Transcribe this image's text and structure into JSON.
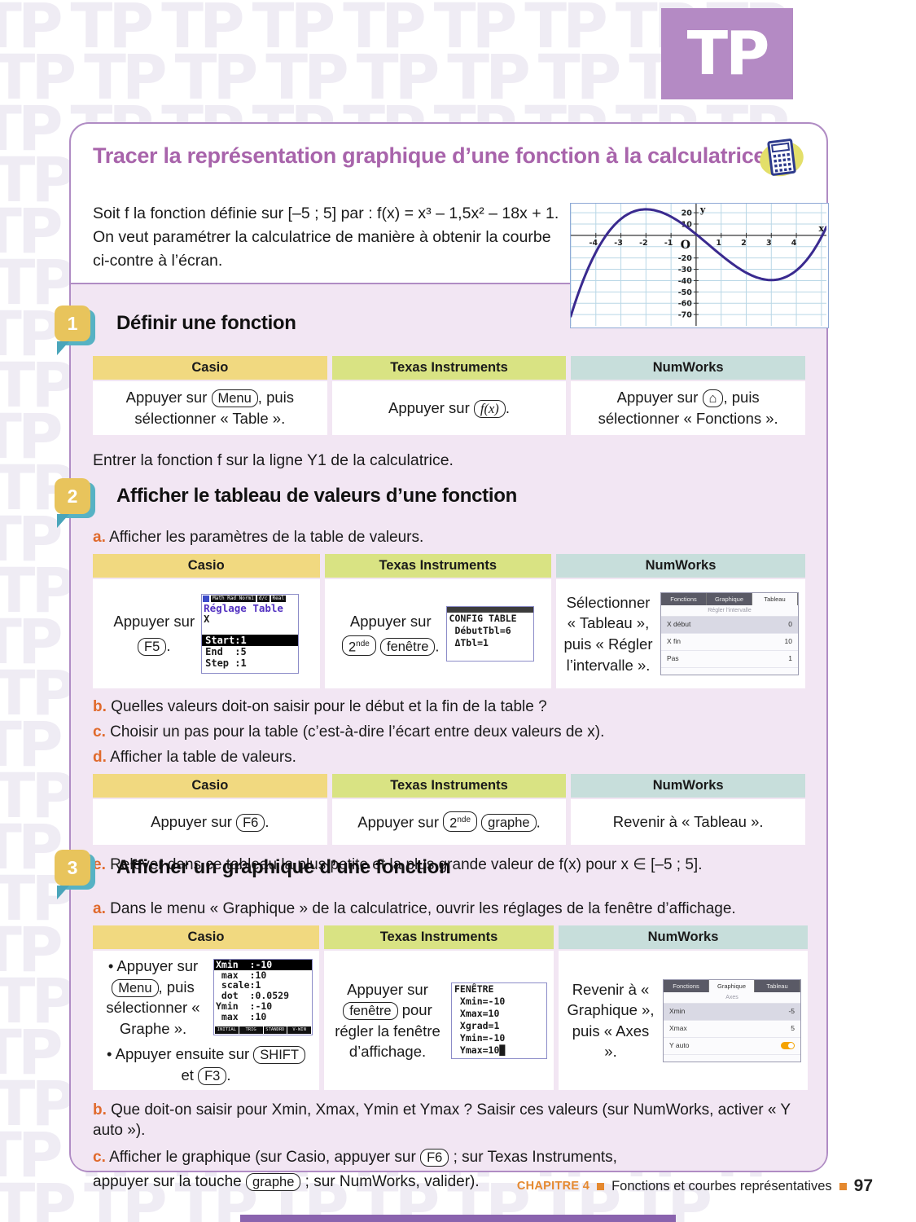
{
  "page": {
    "watermark_text": "TP",
    "logo_text": "TP",
    "footer": {
      "chapter": "CHAPITRE 4",
      "title": "Fonctions et courbes représentatives",
      "page_number": "97"
    }
  },
  "header": {
    "title": "Tracer la représentation graphique d’une fonction à la calculatrice"
  },
  "intro": {
    "line1": "Soit f la fonction définie sur [–5 ; 5] par : f(x) = x³ – 1,5x² – 18x + 1.",
    "line2": "On veut paramétrer la calculatrice de manière à obtenir la courbe",
    "line3": "ci-contre à l’écran."
  },
  "graph": {
    "ylabel": "y",
    "xlabel": "x",
    "origin_label": "O",
    "x_ticks": [
      -4,
      -3,
      -2,
      -1,
      1,
      2,
      3,
      4
    ],
    "y_ticks": [
      20,
      10,
      -20,
      -30,
      -40,
      -50,
      -60,
      -70
    ],
    "x_range": [
      -5.0,
      5.2
    ],
    "y_range": [
      -80,
      28
    ],
    "function": "f(x) = x^3 - 1.5x^2 - 18x + 1",
    "coeffs": [
      1,
      -1.5,
      -18,
      1
    ]
  },
  "columns": [
    "Casio",
    "Texas Instruments",
    "NumWorks"
  ],
  "section1": {
    "number": "1",
    "heading": "Définir une fonction",
    "casio": {
      "pre": "Appuyer sur ",
      "key": "Menu",
      "post": ", puis sélectionner « Table »."
    },
    "ti": {
      "pre": "Appuyer sur ",
      "key": "f(x)",
      "post": "."
    },
    "numworks": {
      "pre": "Appuyer sur ",
      "key": "⌂",
      "post": ", puis sélectionner « Fonctions »."
    },
    "note": "Entrer la fonction f sur la ligne Y1 de la calculatrice."
  },
  "section2": {
    "number": "2",
    "heading": "Afficher le tableau de valeurs d’une fonction",
    "item_a": {
      "letter": "a.",
      "text": "Afficher les paramètres de la table de valeurs."
    },
    "table_a": {
      "casio": {
        "pre": "Appuyer sur",
        "key": "F5",
        "post": "."
      },
      "ti": {
        "pre": "Appuyer sur",
        "key1_base": "2",
        "key1_sup": "nde",
        "key2": "fenêtre",
        "post": "."
      },
      "numworks": {
        "text": "Sélectionner « Tableau », puis « Régler l’intervalle »."
      }
    },
    "casio_screen": {
      "statusbar": [
        "Math Rad Norm1",
        "d/c",
        "Real"
      ],
      "title": "Réglage Table",
      "variable": "X",
      "rows": [
        "Start:1",
        "End  :5",
        "Step :1"
      ]
    },
    "ti_screen": {
      "lines": [
        "CONFIG TABLE",
        " DébutTbl=6",
        " ΔTbl=1"
      ]
    },
    "numworks_screen": {
      "tabs": [
        "Fonctions",
        "Graphique",
        "Tableau"
      ],
      "active_tab": "Tableau",
      "subtitle": "Régler l'intervalle",
      "rows": [
        {
          "label": "X début",
          "value": "0"
        },
        {
          "label": "X fin",
          "value": "10"
        },
        {
          "label": "Pas",
          "value": "1"
        }
      ]
    },
    "item_b": {
      "letter": "b.",
      "text": "Quelles valeurs doit-on saisir pour le début et la fin de la table ?"
    },
    "item_c": {
      "letter": "c.",
      "text": "Choisir un pas pour la table (c’est-à-dire l’écart entre deux valeurs de x)."
    },
    "item_d": {
      "letter": "d.",
      "text": "Afficher la table de valeurs."
    },
    "table_d": {
      "casio": {
        "pre": "Appuyer sur ",
        "key": "F6",
        "post": "."
      },
      "ti": {
        "pre": "Appuyer sur ",
        "key1_base": "2",
        "key1_sup": "nde",
        "key2": "graphe",
        "post": "."
      },
      "numworks": {
        "text": "Revenir à « Tableau »."
      }
    },
    "item_e": {
      "letter": "e.",
      "text": "Relever dans ce tableau la plus petite et la plus grande valeur de f(x) pour x ∈ [–5 ; 5]."
    }
  },
  "section3": {
    "number": "3",
    "heading": "Afficher un graphique d’une fonction",
    "item_a": {
      "letter": "a.",
      "text": "Dans le menu « Graphique » de la calculatrice, ouvrir les réglages de la fenêtre d’affichage."
    },
    "casio": {
      "b1_pre": "• Appuyer sur ",
      "b1_key": "Menu",
      "b1_post": ", puis sélectionner « Graphe ».",
      "b2_pre": "• Appuyer ensuite sur ",
      "b2_key": "SHIFT",
      "b2_mid": " et ",
      "b2_key2": "F3",
      "b2_post": "."
    },
    "casio_screen": {
      "rows": [
        "Xmin  :-10",
        " max  :10",
        " scale:1",
        " dot  :0.0529",
        "Ymin  :-10",
        " max  :10"
      ],
      "menu_tabs": [
        "INITIAL",
        "TRIG",
        "STANDRD",
        "V-WIN"
      ]
    },
    "ti": {
      "pre": "Appuyer sur ",
      "key": "fenêtre",
      "post": " pour régler la fenêtre d’affichage."
    },
    "ti_screen": {
      "lines": [
        "FENÊTRE",
        " Xmin=-10",
        " Xmax=10",
        " Xgrad=1",
        " Ymin=-10",
        " Ymax=10█"
      ]
    },
    "numworks": {
      "text": "Revenir à « Graphique », puis « Axes »."
    },
    "numworks_screen": {
      "tabs": [
        "Fonctions",
        "Graphique",
        "Tableau"
      ],
      "active_tab": "Graphique",
      "subtitle": "Axes",
      "rows": [
        {
          "label": "Xmin",
          "value": "-5"
        },
        {
          "label": "Xmax",
          "value": "5"
        },
        {
          "label": "Y auto",
          "value": "on"
        }
      ]
    },
    "item_b": {
      "letter": "b.",
      "text": "Que doit-on saisir pour Xmin, Xmax, Ymin et Ymax ? Saisir ces valeurs (sur NumWorks, activer « Y auto »)."
    },
    "item_c": {
      "letter": "c.",
      "part1": "Afficher le graphique (sur Casio, appuyer sur ",
      "key1": "F6",
      "part2": " ; sur Texas Instruments,",
      "part3": "appuyer sur la touche ",
      "key2": "graphe",
      "part4": " ; sur NumWorks, valider)."
    }
  },
  "colors": {
    "title_purple": "#a864ab",
    "logo_purple": "#b48ac4",
    "box_border": "#b08cc4",
    "section_bg": "#f2e6f3",
    "casio_header": "#f1d980",
    "ti_header": "#d9e383",
    "numworks_header": "#c7dedb",
    "item_letter_orange": "#e06a2c",
    "footer_orange": "#e5892f",
    "badge_yellow": "#e8c45c",
    "badge_teal": "#56b2c4",
    "curve_blue": "#3a2a8f",
    "toggle_orange": "#f5a300"
  }
}
